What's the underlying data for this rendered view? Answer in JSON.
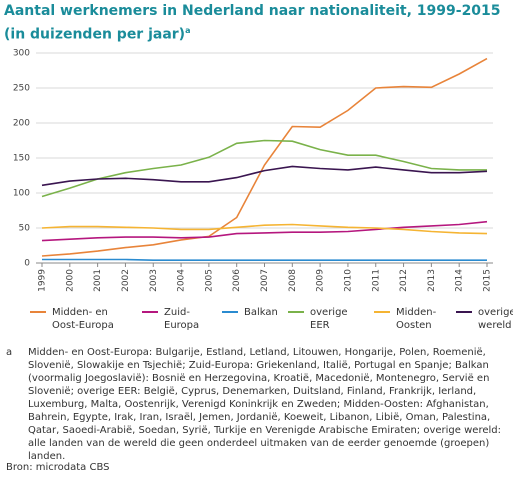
{
  "chart_data": {
    "type": "line",
    "title": "Aantal werknemers in Nederland naar nationaliteit, 1999-2015 (in duizenden per jaar)",
    "title_note": "a",
    "x": [
      1999,
      2000,
      2001,
      2002,
      2003,
      2004,
      2005,
      2006,
      2007,
      2008,
      2009,
      2010,
      2011,
      2012,
      2013,
      2014,
      2015
    ],
    "ylim": [
      0,
      300
    ],
    "yticks": [
      0,
      50,
      100,
      150,
      200,
      250,
      300
    ],
    "grid": true,
    "series": [
      {
        "name": "Midden- en Oost-Europa",
        "color": "#e8843a",
        "values": [
          10,
          13,
          17,
          22,
          26,
          33,
          38,
          65,
          140,
          195,
          194,
          218,
          250,
          252,
          251,
          270,
          292
        ]
      },
      {
        "name": "Zuid-Europa",
        "color": "#b5177e",
        "values": [
          32,
          34,
          36,
          37,
          37,
          36,
          37,
          42,
          43,
          44,
          44,
          45,
          48,
          51,
          53,
          55,
          59
        ]
      },
      {
        "name": "Balkan",
        "color": "#2a8bd0",
        "values": [
          5,
          5,
          5,
          5,
          4,
          4,
          4,
          4,
          4,
          4,
          4,
          4,
          4,
          4,
          4,
          4,
          4
        ]
      },
      {
        "name": "overige EER",
        "color": "#7ab24a",
        "values": [
          95,
          107,
          120,
          129,
          135,
          140,
          151,
          171,
          175,
          174,
          162,
          154,
          154,
          145,
          135,
          133,
          133
        ]
      },
      {
        "name": "Midden-Oosten",
        "color": "#f5b433",
        "values": [
          50,
          52,
          52,
          51,
          50,
          48,
          48,
          51,
          54,
          55,
          53,
          51,
          50,
          48,
          45,
          43,
          42
        ]
      },
      {
        "name": "overige wereld",
        "color": "#3a1550",
        "values": [
          111,
          117,
          120,
          121,
          119,
          116,
          116,
          122,
          132,
          138,
          135,
          133,
          137,
          133,
          129,
          129,
          131
        ]
      }
    ],
    "footnote_marker": "a",
    "footnote": "Midden- en Oost-Europa: Bulgarije, Estland, Letland, Litouwen, Hongarije, Polen, Roemenië, Slovenië, Slowakije en Tsjechië; Zuid-Europa: Griekenland, Italië, Portugal en Spanje; Balkan (voormalig Joegoslavië): Bosnië en Herzegovina, Kroatië, Macedonië, Montenegro, Servië en Slovenië; overige EER: België, Cyprus, Denemarken, Duitsland, Finland, Frankrijk, Ierland, Luxemburg, Malta, Oostenrijk, Verenigd Koninkrijk en Zweden; Midden-Oosten: Afghanistan, Bahrein, Egypte, Irak, Iran, Israël, Jemen, Jordanië, Koeweit, Libanon, Libië, Oman, Palestina, Qatar, Saoedi-Arabië, Soedan, Syrië, Turkije en Verenigde Arabische Emiraten; overige wereld: alle landen van de wereld die geen onderdeel uitmaken van de eerder genoemde (groepen) landen.",
    "source": "Bron: microdata CBS"
  }
}
